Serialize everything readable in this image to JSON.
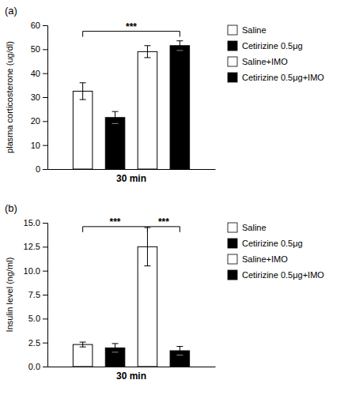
{
  "chart_data": [
    {
      "type": "bar",
      "title": "(a)",
      "y_label": "plasma corticosterone (ug/dl)",
      "categories": [
        "30 min"
      ],
      "series": [
        {
          "name": "Saline",
          "color": "white",
          "values": [
            32.5
          ],
          "errors": [
            3.5
          ]
        },
        {
          "name": "Cetirizine 0.5μg",
          "color": "black",
          "values": [
            21.5
          ],
          "errors": [
            2.5
          ]
        },
        {
          "name": "Saline+IMO",
          "color": "white",
          "values": [
            49.0
          ],
          "errors": [
            2.5
          ]
        },
        {
          "name": "Cetirizine 0.5μg+IMO",
          "color": "black",
          "values": [
            51.5
          ],
          "errors": [
            2.0
          ]
        }
      ],
      "ylim": [
        0,
        60
      ],
      "yticks": [
        0,
        10,
        20,
        30,
        40,
        50,
        60
      ],
      "grid": false,
      "legend": "right",
      "annotations": [
        {
          "text": "***",
          "between": [
            "Saline",
            "Cetirizine 0.5μg+IMO"
          ],
          "y": 57.5
        }
      ]
    },
    {
      "type": "bar",
      "title": "(b)",
      "y_label": "Insulin level (ng/ml)",
      "categories": [
        "30 min"
      ],
      "series": [
        {
          "name": "Saline",
          "color": "white",
          "values": [
            2.3
          ],
          "errors": [
            0.25
          ]
        },
        {
          "name": "Cetirizine 0.5μg",
          "color": "black",
          "values": [
            1.95
          ],
          "errors": [
            0.45
          ]
        },
        {
          "name": "Saline+IMO",
          "color": "white",
          "values": [
            12.5
          ],
          "errors": [
            2.0
          ]
        },
        {
          "name": "Cetirizine 0.5μg+IMO",
          "color": "black",
          "values": [
            1.65
          ],
          "errors": [
            0.45
          ]
        }
      ],
      "ylim": [
        0,
        15.0
      ],
      "yticks": [
        {
          "value": 0,
          "label": "0.0"
        },
        2.5,
        {
          "value": 5,
          "label": "5.0"
        },
        7.5,
        {
          "value": 10,
          "label": "10.0"
        },
        12.5,
        {
          "value": 15,
          "label": "15.0"
        }
      ],
      "grid": false,
      "legend": "right",
      "annotations": [
        {
          "text": "***",
          "between": [
            "Saline",
            "Saline+IMO"
          ],
          "y": 14.6
        },
        {
          "text": "***",
          "between": [
            "Saline+IMO",
            "Cetirizine 0.5μg+IMO"
          ],
          "y": 14.6
        }
      ]
    }
  ]
}
